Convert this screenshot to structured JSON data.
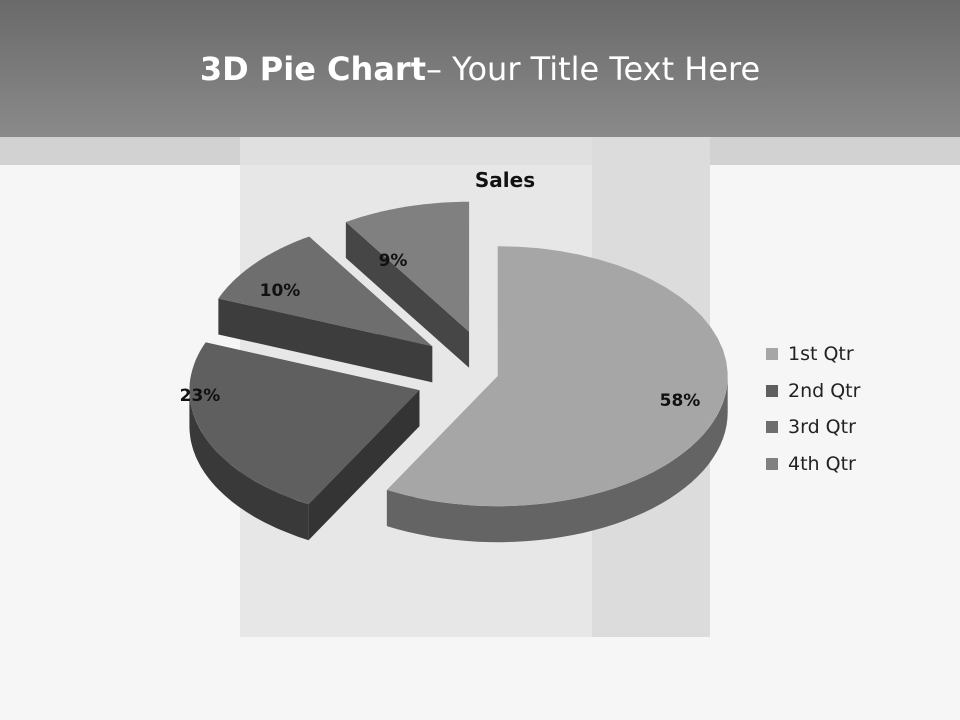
{
  "header": {
    "title_bold": "3D Pie Chart",
    "title_rest": "– Your Title Text Here"
  },
  "chart_data": {
    "type": "pie",
    "title": "Sales",
    "categories": [
      "1st Qtr",
      "2nd Qtr",
      "3rd Qtr",
      "4th Qtr"
    ],
    "values": [
      58,
      23,
      10,
      9
    ],
    "labels": [
      "58%",
      "23%",
      "10%",
      "9%"
    ],
    "colors": [
      "#a6a6a6",
      "#5f5f5f",
      "#6e6e6e",
      "#808080"
    ],
    "exploded": true,
    "three_d": true,
    "legend": "right"
  }
}
